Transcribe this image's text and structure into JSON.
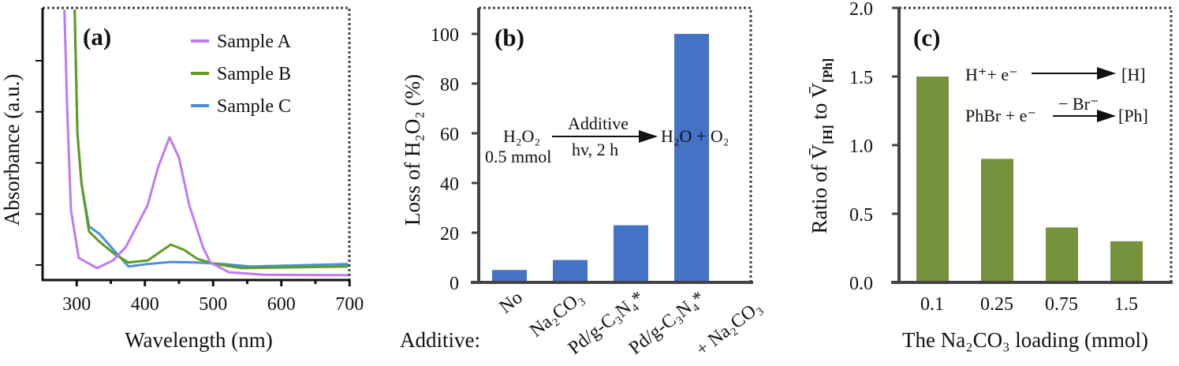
{
  "chart_data": [
    {
      "type": "line",
      "panel_label": "(a)",
      "xlabel": "Wavelength (nm)",
      "ylabel": "Absorbance (a.u.)",
      "xlim": [
        250,
        700
      ],
      "ylim": [
        -0.3,
        5.0
      ],
      "xticks": [
        300,
        400,
        500,
        600,
        700
      ],
      "xminor": [
        350,
        450,
        550,
        650
      ],
      "yticks": [
        0,
        1,
        2,
        3,
        4
      ],
      "ytick_labels_shown": false,
      "legend_position": "top-right",
      "series": [
        {
          "name": "Sample A",
          "color": "#bf7af2",
          "x": [
            282,
            286,
            291.6,
            303,
            330,
            353,
            372,
            404,
            419,
            436,
            450,
            465,
            485,
            496,
            523,
            573,
            698
          ],
          "y": [
            5.0,
            3.1,
            1.07,
            0.14,
            -0.06,
            0.09,
            0.35,
            1.17,
            1.9,
            2.5,
            2.1,
            1.17,
            0.35,
            0.05,
            -0.14,
            -0.19,
            -0.2
          ]
        },
        {
          "name": "Sample B",
          "color": "#5e9c1e",
          "x": [
            297,
            301,
            307,
            318,
            334,
            357,
            376,
            404,
            438,
            457,
            477,
            503,
            542,
            698
          ],
          "y": [
            5.0,
            2.6,
            1.6,
            0.66,
            0.45,
            0.2,
            0.05,
            0.09,
            0.4,
            0.3,
            0.12,
            0.02,
            -0.06,
            -0.03
          ]
        },
        {
          "name": "Sample C",
          "color": "#4a8fdb",
          "x": [
            297,
            301,
            307,
            318,
            334,
            357,
            376,
            404,
            438,
            477,
            515,
            554,
            698
          ],
          "y": [
            5.0,
            2.6,
            1.6,
            0.76,
            0.6,
            0.25,
            -0.03,
            0.02,
            0.06,
            0.05,
            0.02,
            -0.03,
            0.02
          ]
        }
      ]
    },
    {
      "type": "bar",
      "panel_label": "(b)",
      "ylabel": "Loss of H₂O₂ (%)",
      "xlabel": "Additive:",
      "ylim": [
        0,
        110
      ],
      "yticks": [
        0,
        20,
        40,
        60,
        80,
        100
      ],
      "categories": [
        [
          "No"
        ],
        [
          "Na₂CO₃"
        ],
        [
          "Pd/g-C₃N₄*"
        ],
        [
          "Pd/g-C₃N₄*",
          "+ Na₂CO₃"
        ]
      ],
      "values": [
        5,
        9,
        23,
        100
      ],
      "color": "#4472c4",
      "annotation": {
        "reactant": "H₂O₂",
        "amount": "0.5 mmol",
        "above_arrow": "Additive",
        "below_arrow": "hv, 2 h",
        "product": "H₂O + O₂"
      }
    },
    {
      "type": "bar",
      "panel_label": "(c)",
      "ylabel_parts": [
        "Ratio of ",
        "V̄",
        "[H]",
        " to ",
        "V̄",
        "[Ph]"
      ],
      "xlabel": "The Na₂CO₃ loading (mmol)",
      "ylim": [
        0,
        2.0
      ],
      "yticks": [
        "0.0",
        "0.5",
        "1.0",
        "1.5",
        "2.0"
      ],
      "categories": [
        "0.1",
        "0.25",
        "0.75",
        "1.5"
      ],
      "values": [
        1.5,
        0.9,
        0.4,
        0.3
      ],
      "color": "#76923c",
      "annotation": {
        "r1_left": "H⁺+ e⁻",
        "r1_right": "[H]",
        "r2_left": "PhBr + e⁻",
        "r2_above": "− Br⁻",
        "r2_right": "[Ph]"
      }
    }
  ]
}
